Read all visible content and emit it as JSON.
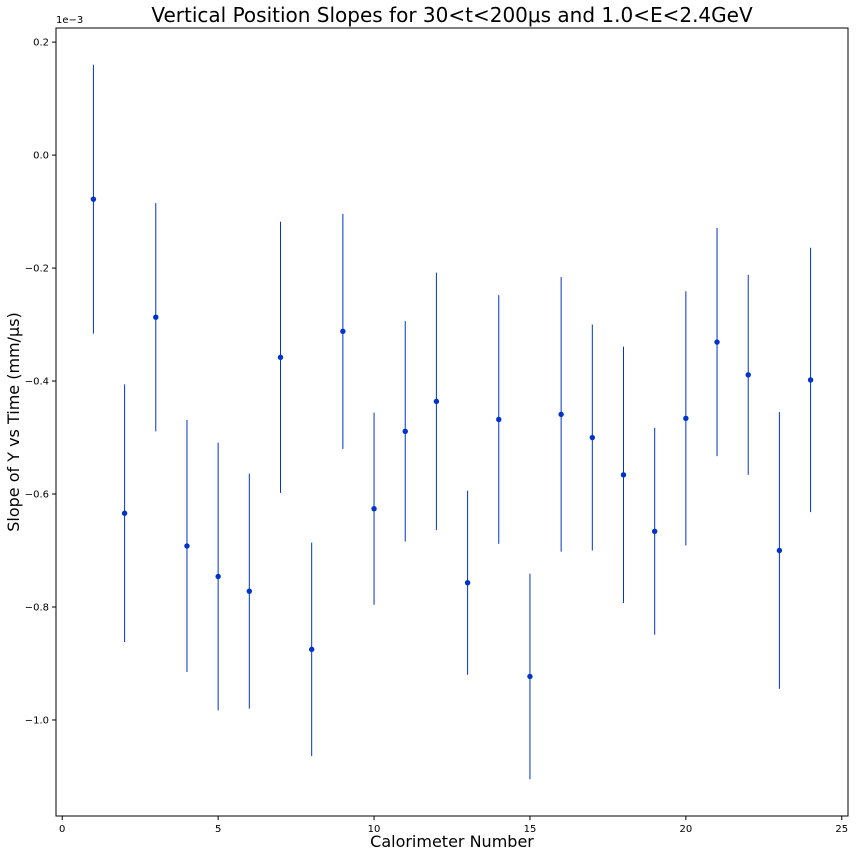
{
  "chart_data": {
    "type": "scatter",
    "title": "Vertical Position Slopes for 30<t<200μs and 1.0<E<2.4GeV",
    "xlabel": "Calorimeter Number",
    "ylabel": "Slope of Y vs Time (mm/μs)",
    "y_offset_label": "1e−3",
    "xlim": [
      -0.2,
      25.2
    ],
    "ylim": [
      -1.17,
      0.225
    ],
    "x_ticks": [
      0,
      5,
      10,
      15,
      20,
      25
    ],
    "x_tick_labels": [
      "0",
      "5",
      "10",
      "15",
      "20",
      "25"
    ],
    "y_ticks": [
      0.2,
      0.0,
      -0.2,
      -0.4,
      -0.6,
      -0.8,
      -1.0
    ],
    "y_tick_labels": [
      "0.2",
      "0.0",
      "−0.2",
      "−0.4",
      "−0.6",
      "−0.8",
      "−1.0"
    ],
    "grid": false,
    "marker_color": "#0033cc",
    "errorbar_color": "#0033cc",
    "series": [
      {
        "x": [
          1,
          2,
          3,
          4,
          5,
          6,
          7,
          8,
          9,
          10,
          11,
          12,
          13,
          14,
          15,
          16,
          17,
          18,
          19,
          20,
          21,
          22,
          23,
          24
        ],
        "y": [
          -0.078,
          -0.634,
          -0.287,
          -0.692,
          -0.746,
          -0.772,
          -0.358,
          -0.875,
          -0.312,
          -0.626,
          -0.489,
          -0.436,
          -0.757,
          -0.468,
          -0.923,
          -0.459,
          -0.5,
          -0.566,
          -0.666,
          -0.466,
          -0.331,
          -0.389,
          -0.7,
          -0.398
        ],
        "err": [
          0.238,
          0.228,
          0.202,
          0.223,
          0.237,
          0.208,
          0.24,
          0.189,
          0.208,
          0.17,
          0.195,
          0.228,
          0.163,
          0.22,
          0.182,
          0.243,
          0.2,
          0.227,
          0.183,
          0.225,
          0.202,
          0.177,
          0.245,
          0.234
        ]
      }
    ]
  }
}
